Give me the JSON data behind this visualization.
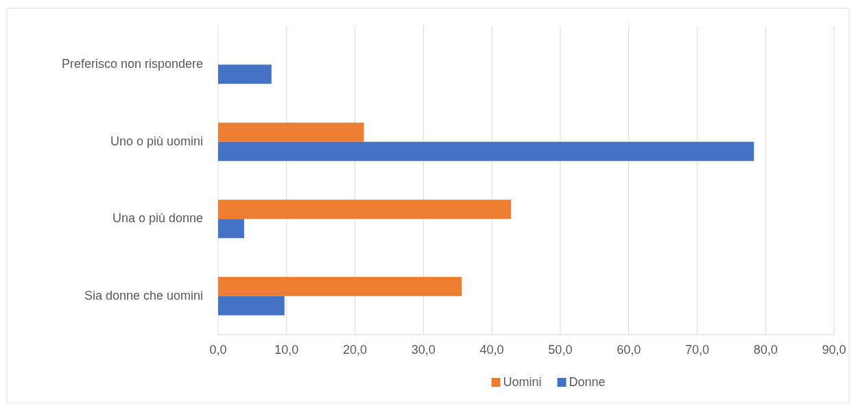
{
  "chart_data": {
    "type": "bar",
    "orientation": "horizontal",
    "categories": [
      "Preferisco non rispondere",
      "Uno o più uomini",
      "Una o più donne",
      "Sia donne che uomini"
    ],
    "series": [
      {
        "name": "Uomini",
        "color": "#ed7d31",
        "values": [
          null,
          21.3,
          42.8,
          35.6
        ]
      },
      {
        "name": "Donne",
        "color": "#4472c4",
        "values": [
          7.8,
          78.3,
          3.8,
          9.7
        ]
      }
    ],
    "xlim": [
      0,
      90
    ],
    "xticks": [
      {
        "value": 0,
        "label": "0,0"
      },
      {
        "value": 10,
        "label": "10,0"
      },
      {
        "value": 20,
        "label": "20,0"
      },
      {
        "value": 30,
        "label": "30,0"
      },
      {
        "value": 40,
        "label": "40,0"
      },
      {
        "value": 50,
        "label": "50,0"
      },
      {
        "value": 60,
        "label": "60,0"
      },
      {
        "value": 70,
        "label": "70,0"
      },
      {
        "value": 80,
        "label": "80,0"
      },
      {
        "value": 90,
        "label": "90,0"
      }
    ],
    "grid": "x",
    "legend": "bottom"
  }
}
